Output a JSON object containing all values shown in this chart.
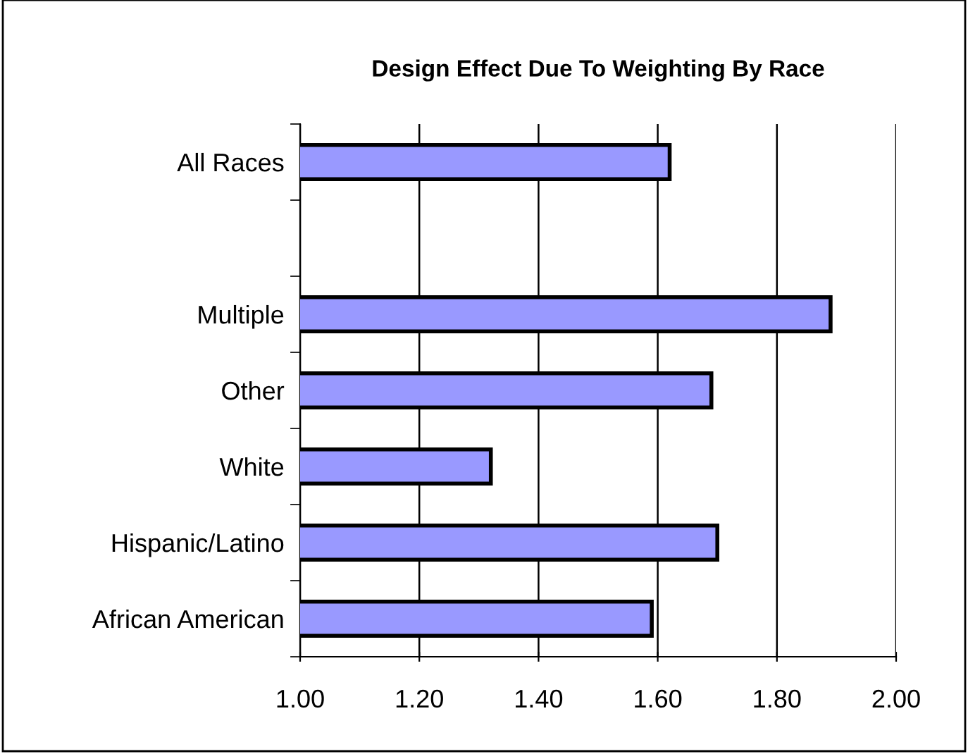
{
  "chart_data": {
    "type": "bar",
    "orientation": "horizontal",
    "title": "Design Effect Due To Weighting By Race",
    "categories": [
      "All Races",
      null,
      "Multiple",
      "Other",
      "White",
      "Hispanic/Latino",
      "African American"
    ],
    "values": [
      1.62,
      null,
      1.89,
      1.69,
      1.32,
      1.7,
      1.59
    ],
    "color": "#9999ff",
    "xlim": [
      1.0,
      2.0
    ],
    "xticks": [
      {
        "value": 1.0,
        "label": "1.00"
      },
      {
        "value": 1.2,
        "label": "1.20"
      },
      {
        "value": 1.4,
        "label": "1.40"
      },
      {
        "value": 1.6,
        "label": "1.60"
      },
      {
        "value": 1.8,
        "label": "1.80"
      },
      {
        "value": 2.0,
        "label": "2.00"
      }
    ],
    "grid": "x",
    "legend": false
  }
}
